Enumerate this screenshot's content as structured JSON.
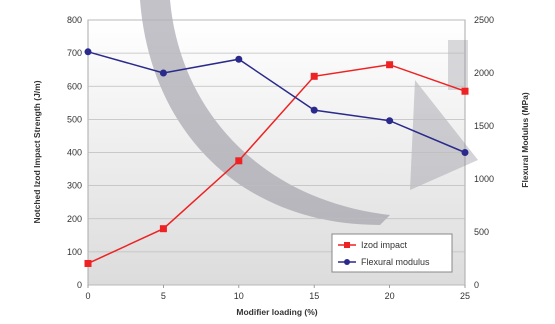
{
  "chart_data": {
    "type": "line",
    "title": "",
    "xlabel": "Modifier loading (%)",
    "ylabel_left": "Notched Izod Impact Strength (J/m)",
    "ylabel_right": "Flexural Modulus (MPa)",
    "x": [
      0,
      5,
      10,
      15,
      20,
      25
    ],
    "x_ticks": [
      "0",
      "5",
      "10",
      "15",
      "20",
      "25"
    ],
    "xlim": [
      0,
      25
    ],
    "ylim_left": [
      0,
      800
    ],
    "ylim_right": [
      0,
      2500
    ],
    "y_left_ticks": [
      "0",
      "100",
      "200",
      "300",
      "400",
      "500",
      "600",
      "700",
      "800"
    ],
    "y_right_ticks": [
      "0",
      "500",
      "1000",
      "1500",
      "2000",
      "2500"
    ],
    "grid": true,
    "legend_position": "bottom-right",
    "series": [
      {
        "name": "Izod impact",
        "axis": "left",
        "color": "#ee2222",
        "values": [
          65,
          170,
          375,
          630,
          665,
          585
        ]
      },
      {
        "name": "Flexural modulus",
        "axis": "right",
        "color": "#2a2a8c",
        "values": [
          2200,
          2000,
          2130,
          1650,
          1550,
          1250
        ]
      }
    ]
  }
}
